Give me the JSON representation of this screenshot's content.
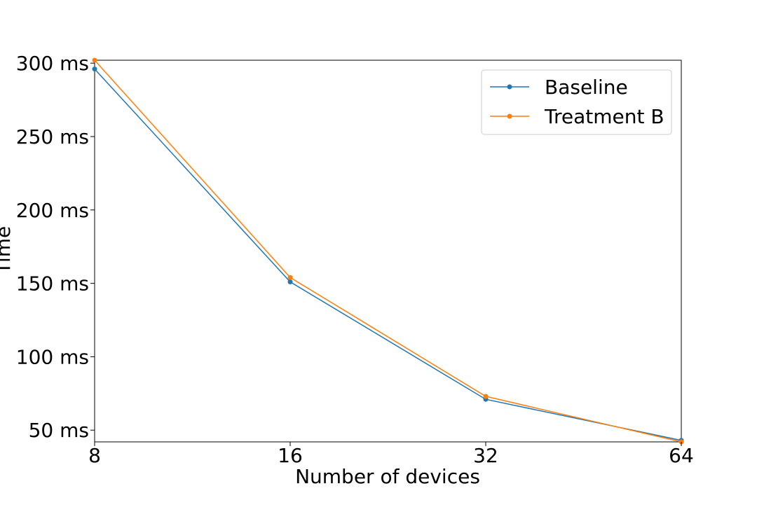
{
  "chart_data": {
    "type": "line",
    "title": "",
    "xlabel": "Number of devices",
    "ylabel": "Time",
    "x_scale": "log2",
    "x": [
      8,
      16,
      32,
      64
    ],
    "x_tick_labels": [
      "8",
      "16",
      "32",
      "64"
    ],
    "xlim": [
      8,
      64
    ],
    "y_unit": "ms",
    "ylim": [
      42,
      302
    ],
    "y_ticks": [
      50,
      100,
      150,
      200,
      250,
      300
    ],
    "y_tick_labels": [
      "50 ms",
      "100 ms",
      "150 ms",
      "200 ms",
      "250 ms",
      "300 ms"
    ],
    "grid": false,
    "legend_position": "top-right",
    "series": [
      {
        "name": "Baseline",
        "color": "#1f77b4",
        "marker": "circle",
        "values": [
          296,
          151,
          71,
          43
        ]
      },
      {
        "name": "Treatment B",
        "color": "#ff7f0e",
        "marker": "circle",
        "values": [
          302,
          154,
          73,
          42
        ]
      }
    ]
  }
}
